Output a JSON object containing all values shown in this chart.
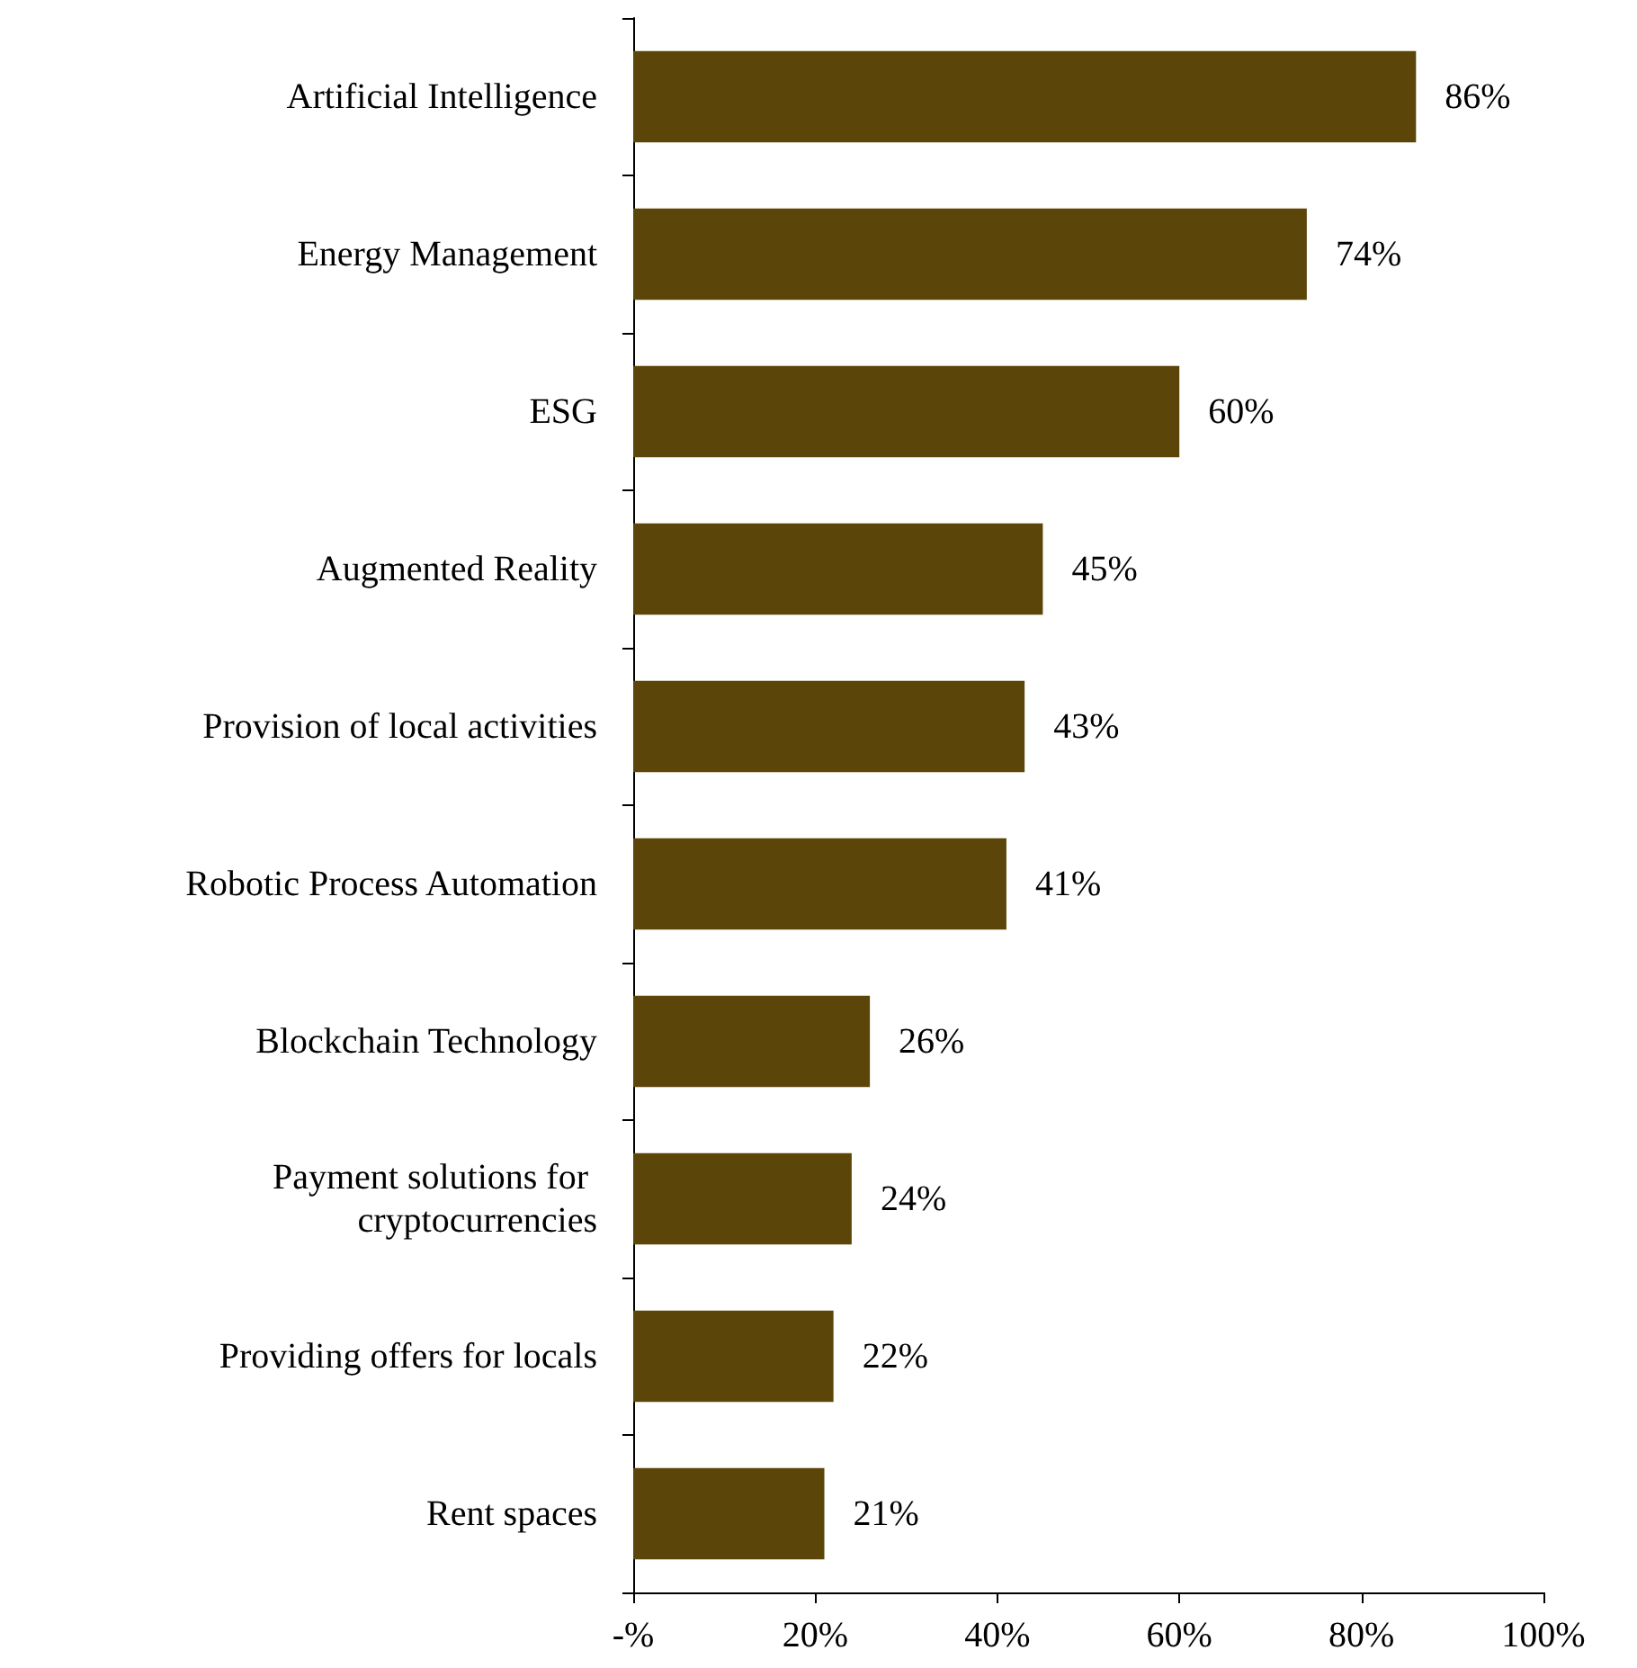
{
  "chart_data": {
    "type": "bar",
    "orientation": "horizontal",
    "categories": [
      "Artificial Intelligence",
      "Energy Management",
      "ESG",
      "Augmented Reality",
      "Provision of local activities",
      "Robotic Process Automation",
      "Blockchain Technology",
      "Payment solutions for cryptocurrencies",
      "Providing offers for locals",
      "Rent spaces"
    ],
    "values": [
      86,
      74,
      60,
      45,
      43,
      41,
      26,
      24,
      22,
      21
    ],
    "value_labels": [
      "86%",
      "74%",
      "60%",
      "45%",
      "43%",
      "41%",
      "26%",
      "24%",
      "22%",
      "21%"
    ],
    "color": "#5c4508",
    "xlim": [
      0,
      100
    ],
    "xticks": [
      {
        "value": 0,
        "label": "-%"
      },
      {
        "value": 20,
        "label": "20%"
      },
      {
        "value": 40,
        "label": "40%"
      },
      {
        "value": 60,
        "label": "60%"
      },
      {
        "value": 80,
        "label": "80%"
      },
      {
        "value": 100,
        "label": "100%"
      }
    ],
    "grid": false
  }
}
